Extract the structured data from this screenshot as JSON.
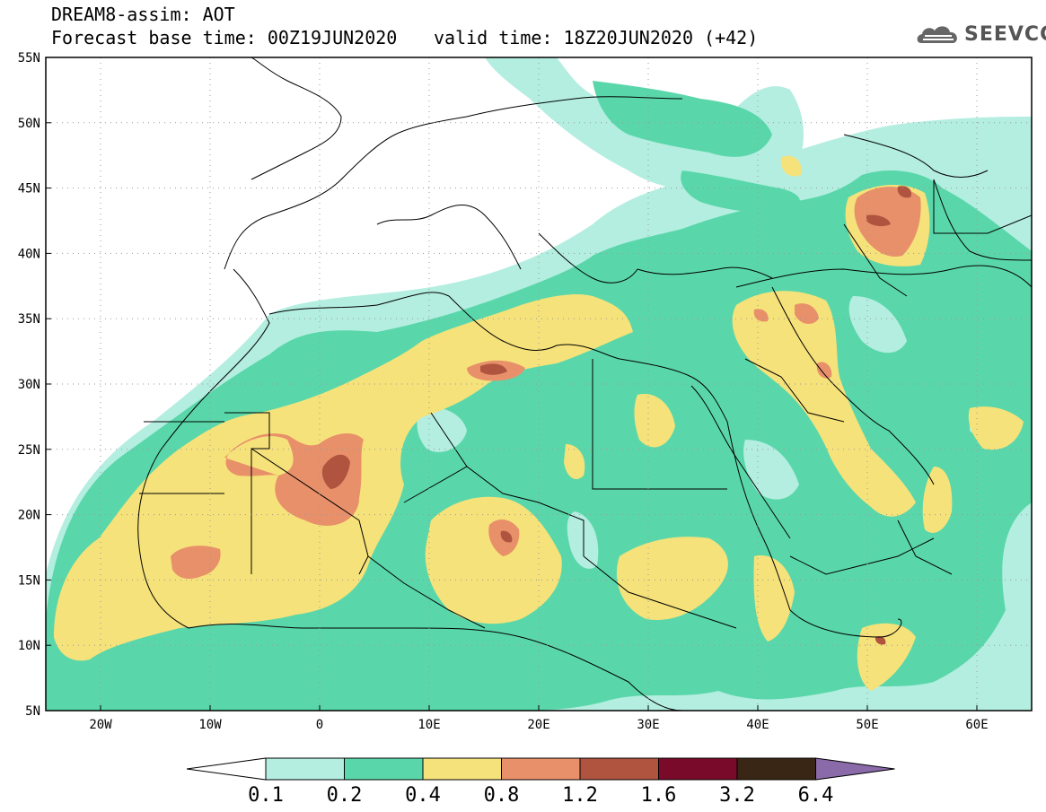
{
  "header": {
    "title": "DREAM8-assim: AOT",
    "base_time": "Forecast base time: 00Z19JUN2020",
    "valid_time": "valid time: 18Z20JUN2020 (+42)"
  },
  "logo": {
    "text": "SEEVCCC",
    "icon": "cloud-icon"
  },
  "map": {
    "lon_range": [
      -25,
      65
    ],
    "lat_range": [
      5,
      55
    ],
    "lat_ticks": [
      {
        "value": 55,
        "label": "55N"
      },
      {
        "value": 50,
        "label": "50N"
      },
      {
        "value": 45,
        "label": "45N"
      },
      {
        "value": 40,
        "label": "40N"
      },
      {
        "value": 35,
        "label": "35N"
      },
      {
        "value": 30,
        "label": "30N"
      },
      {
        "value": 25,
        "label": "25N"
      },
      {
        "value": 20,
        "label": "20N"
      },
      {
        "value": 15,
        "label": "15N"
      },
      {
        "value": 10,
        "label": "10N"
      },
      {
        "value": 5,
        "label": "5N"
      }
    ],
    "lon_ticks": [
      {
        "value": -20,
        "label": "20W"
      },
      {
        "value": -10,
        "label": "10W"
      },
      {
        "value": 0,
        "label": "0"
      },
      {
        "value": 10,
        "label": "10E"
      },
      {
        "value": 20,
        "label": "20E"
      },
      {
        "value": 30,
        "label": "30E"
      },
      {
        "value": 40,
        "label": "40E"
      },
      {
        "value": 50,
        "label": "50E"
      },
      {
        "value": 60,
        "label": "60E"
      }
    ],
    "grid": true
  },
  "colorbar": {
    "levels": [
      "0.1",
      "0.2",
      "0.4",
      "0.8",
      "1.2",
      "1.6",
      "3.2",
      "6.4"
    ],
    "colors": [
      "#ffffff",
      "#b4eee0",
      "#5ad7aa",
      "#f6e27a",
      "#e8906a",
      "#b05440",
      "#7a0a2a",
      "#3a2614",
      "#8a6aa8"
    ]
  },
  "colors": {
    "aot_0_1": "#b4eee0",
    "aot_0_2": "#5ad7aa",
    "aot_0_4": "#f6e27a",
    "aot_0_8": "#e8906a",
    "aot_1_2": "#b05440"
  }
}
